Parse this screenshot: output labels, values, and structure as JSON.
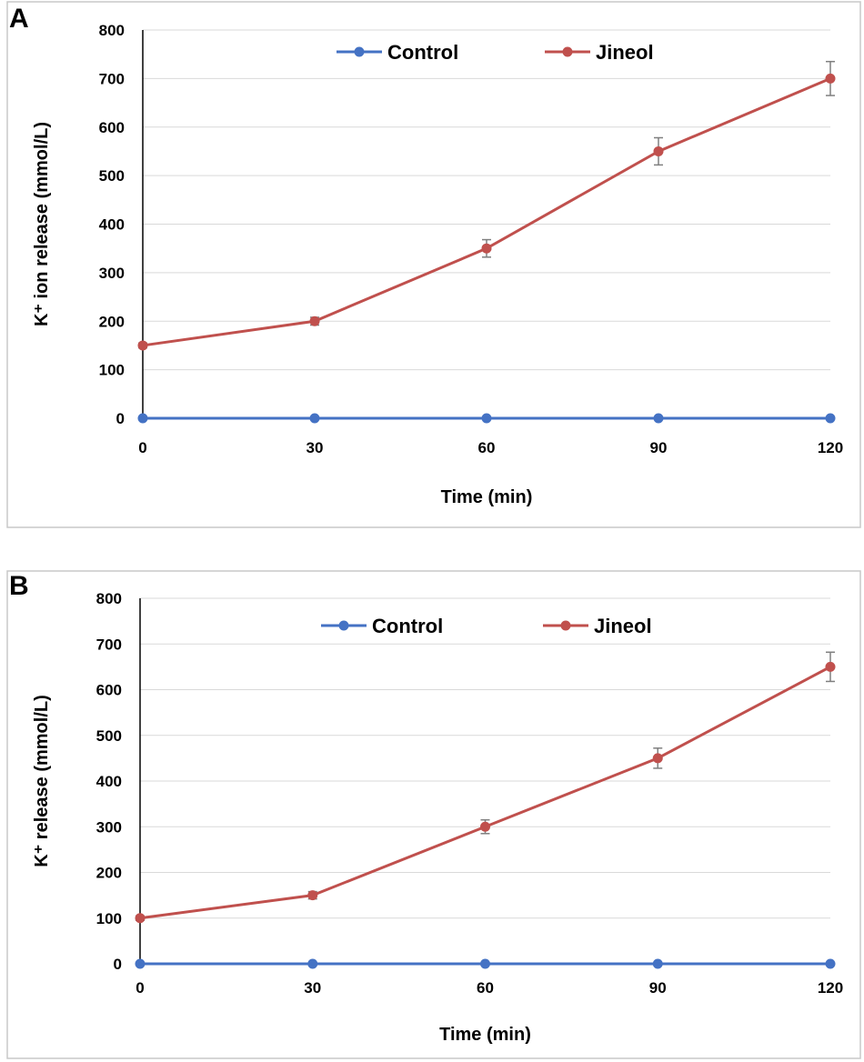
{
  "colors": {
    "control": "#4472C4",
    "jineol": "#C0504D"
  },
  "chart_data": [
    {
      "panel": "A",
      "type": "line",
      "title": "",
      "xlabel": "Time (min)",
      "ylabel": "K⁺ ion release (mmol/L)",
      "x": [
        0,
        30,
        60,
        90,
        120
      ],
      "x_ticks": [
        "0",
        "30",
        "60",
        "90",
        "120"
      ],
      "ylim": [
        0,
        800
      ],
      "y_ticks": [
        "0",
        "100",
        "200",
        "300",
        "400",
        "500",
        "600",
        "700",
        "800"
      ],
      "grid": true,
      "legend_position": "top",
      "series": [
        {
          "name": "Control",
          "values": [
            0,
            0,
            0,
            0,
            0
          ],
          "errors": [
            0,
            0,
            0,
            0,
            0
          ]
        },
        {
          "name": "Jineol",
          "values": [
            150,
            200,
            350,
            550,
            700
          ],
          "errors": [
            5,
            8,
            18,
            28,
            35
          ]
        }
      ]
    },
    {
      "panel": "B",
      "type": "line",
      "title": "",
      "xlabel": "Time (min)",
      "ylabel": "K⁺ release (mmol/L)",
      "x": [
        0,
        30,
        60,
        90,
        120
      ],
      "x_ticks": [
        "0",
        "30",
        "60",
        "90",
        "120"
      ],
      "ylim": [
        0,
        800
      ],
      "y_ticks": [
        "0",
        "100",
        "200",
        "300",
        "400",
        "500",
        "600",
        "700",
        "800"
      ],
      "grid": true,
      "legend_position": "top",
      "series": [
        {
          "name": "Control",
          "values": [
            0,
            0,
            0,
            0,
            0
          ],
          "errors": [
            0,
            0,
            0,
            0,
            0
          ]
        },
        {
          "name": "Jineol",
          "values": [
            100,
            150,
            300,
            450,
            650
          ],
          "errors": [
            5,
            8,
            15,
            22,
            32
          ]
        }
      ]
    }
  ]
}
